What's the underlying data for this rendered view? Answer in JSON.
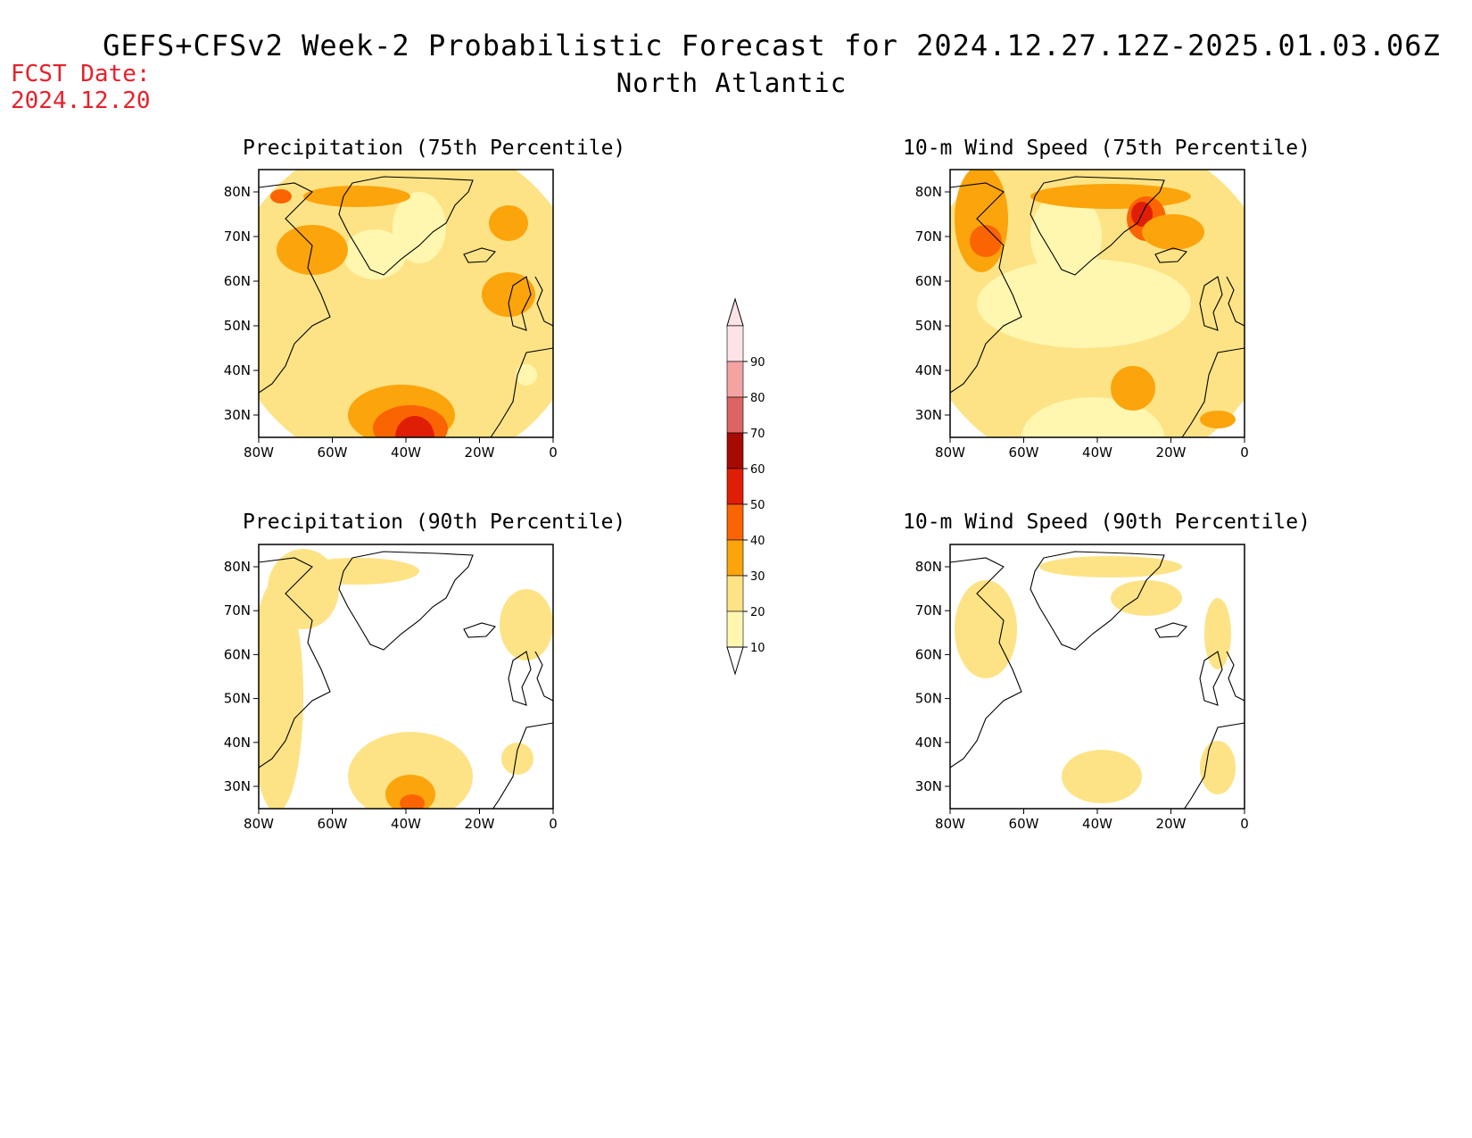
{
  "header": {
    "title": "GEFS+CFSv2 Week-2 Probabilistic Forecast for 2024.12.27.12Z-2025.01.03.06Z",
    "region": "North Atlantic",
    "fcst_label": "FCST Date:",
    "fcst_date": "2024.12.20"
  },
  "panels": [
    {
      "title": "Precipitation (75th Percentile)"
    },
    {
      "title": "10-m Wind Speed (75th Percentile)"
    },
    {
      "title": "Precipitation (90th Percentile)"
    },
    {
      "title": "10-m Wind Speed (90th Percentile)"
    }
  ],
  "axes": {
    "lat_labels": [
      "80N",
      "70N",
      "60N",
      "50N",
      "40N",
      "30N"
    ],
    "lon_labels": [
      "80W",
      "60W",
      "40W",
      "20W",
      "0"
    ]
  },
  "colorbar": {
    "levels": [
      "10",
      "20",
      "30",
      "40",
      "50",
      "60",
      "70",
      "80",
      "90"
    ],
    "colors": [
      "#fff7b0",
      "#fde385",
      "#fca40c",
      "#fb6402",
      "#e01e06",
      "#a60a03",
      "#dc6464",
      "#f4a3a3",
      "#fde3e6"
    ]
  }
}
